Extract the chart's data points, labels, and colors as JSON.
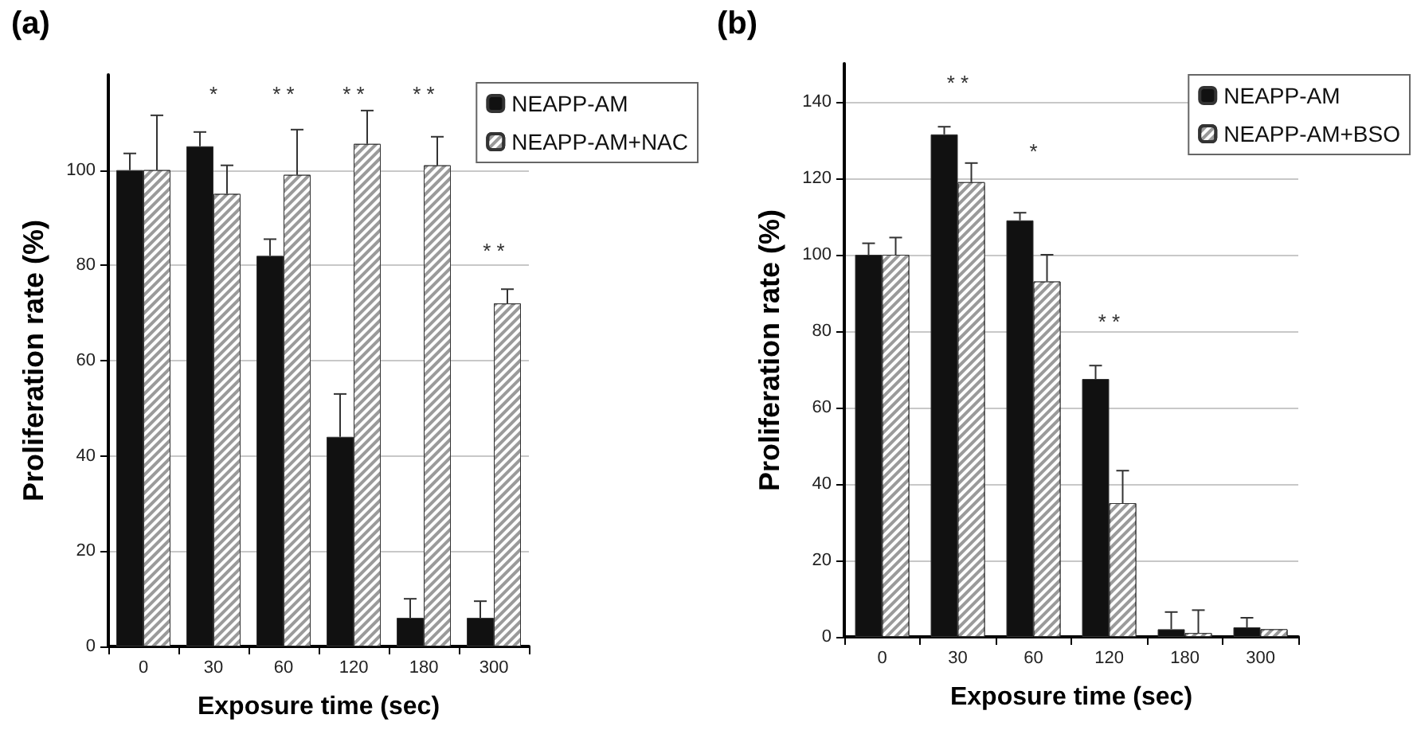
{
  "chart_data": [
    {
      "type": "bar",
      "title": "(a)",
      "xlabel": "Exposure time (sec)",
      "ylabel": "Proliferation rate (%)",
      "categories": [
        "0",
        "30",
        "60",
        "120",
        "180",
        "300"
      ],
      "series": [
        {
          "name": "NEAPP-AM",
          "color": "#111111",
          "values": [
            100,
            105,
            82,
            44,
            6,
            6
          ],
          "errors": [
            [
              100,
              103.5
            ],
            [
              105,
              108
            ],
            [
              82,
              85.5
            ],
            [
              44,
              53
            ],
            [
              6,
              10
            ],
            [
              6,
              9.5
            ]
          ]
        },
        {
          "name": "NEAPP-AM+NAC",
          "color": "#9a9a9a",
          "values": [
            100,
            95,
            99,
            105.5,
            101,
            72
          ],
          "errors": [
            [
              100,
              111.5
            ],
            [
              95,
              101
            ],
            [
              99,
              108.5
            ],
            [
              105.5,
              112.5
            ],
            [
              101,
              107
            ],
            [
              72,
              75
            ]
          ]
        }
      ],
      "ylim": [
        0,
        120
      ],
      "yticks": [
        0,
        20,
        40,
        60,
        80,
        100
      ],
      "grid": "y",
      "legend": "top right",
      "annotations": [
        "*",
        "* *",
        "* *",
        "* *",
        "* *"
      ]
    },
    {
      "type": "bar",
      "title": "(b)",
      "xlabel": "Exposure time (sec)",
      "ylabel": "Proliferation rate (%)",
      "categories": [
        "0",
        "30",
        "60",
        "120",
        "180",
        "300"
      ],
      "series": [
        {
          "name": "NEAPP-AM",
          "color": "#111111",
          "values": [
            100,
            131.5,
            109,
            67.5,
            2,
            2.5
          ],
          "errors": [
            [
              100,
              103
            ],
            [
              131.5,
              133.5
            ],
            [
              109,
              111
            ],
            [
              67.5,
              71
            ],
            [
              2,
              6.5
            ],
            [
              2.5,
              5
            ]
          ]
        },
        {
          "name": "NEAPP-AM+BSO",
          "color": "#9a9a9a",
          "values": [
            100,
            119,
            93,
            35,
            1,
            2
          ],
          "errors": [
            [
              100,
              104.5
            ],
            [
              119,
              124
            ],
            [
              93,
              100
            ],
            [
              35,
              43.5
            ],
            [
              1,
              7
            ],
            null
          ]
        }
      ],
      "ylim": [
        0,
        150
      ],
      "yticks": [
        0,
        20,
        40,
        60,
        80,
        100,
        120,
        140
      ],
      "grid": "y",
      "legend": "top right",
      "annotations": [
        "* *",
        "*",
        "* *"
      ]
    }
  ]
}
